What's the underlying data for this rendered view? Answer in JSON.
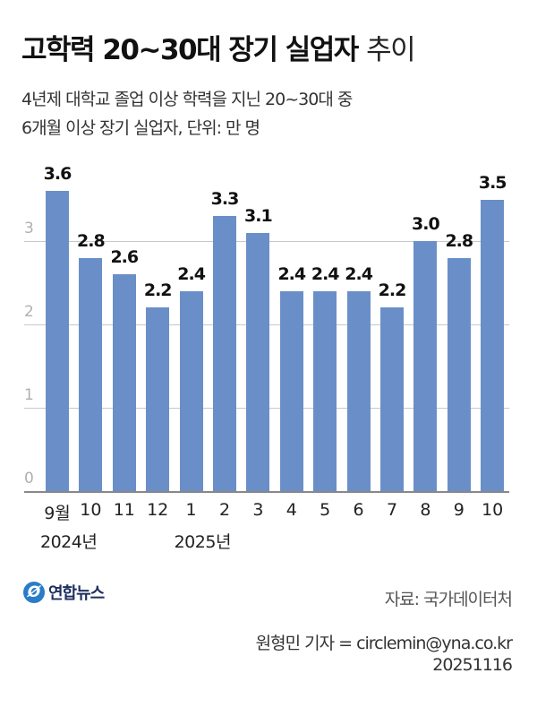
{
  "header": {
    "title_bold": "고학력 20~30대 장기 실업자",
    "title_light": "추이",
    "subtitle_line1": "4년제 대학교 졸업 이상 학력을 지닌 20~30대 중",
    "subtitle_line2": "6개월 이상 장기 실업자, 단위: 만 명"
  },
  "colors": {
    "bar": "#6a8fc8",
    "grid": "#c8c8c8",
    "logo": "#2a7cc7"
  },
  "chart_data": {
    "type": "bar",
    "title": "고학력 20~30대 장기 실업자 추이",
    "subtitle": "4년제 대학교 졸업 이상 학력을 지닌 20~30대 중 6개월 이상 장기 실업자, 단위: 만 명",
    "categories": [
      "9월",
      "10",
      "11",
      "12",
      "1",
      "2",
      "3",
      "4",
      "5",
      "6",
      "7",
      "8",
      "9",
      "10"
    ],
    "year_labels": [
      {
        "label": "2024년",
        "at_index": 0
      },
      {
        "label": "2025년",
        "at_index": 4
      }
    ],
    "values": [
      3.6,
      2.8,
      2.6,
      2.2,
      2.4,
      3.3,
      3.1,
      2.4,
      2.4,
      2.4,
      2.2,
      3.0,
      2.8,
      3.5
    ],
    "value_labels": [
      "3.6",
      "2.8",
      "2.6",
      "2.2",
      "2.4",
      "3.3",
      "3.1",
      "2.4",
      "2.4",
      "2.4",
      "2.2",
      "3.0",
      "2.8",
      "3.5"
    ],
    "yticks": [
      "0",
      "1",
      "2",
      "3"
    ],
    "ylim": [
      0,
      3.9
    ],
    "grid": true,
    "xlabel": "",
    "ylabel": "만 명"
  },
  "footer": {
    "logo_mark": "@",
    "logo_text": "연합뉴스",
    "source": "자료: 국가데이터처",
    "byline": "원형민 기자 = circlemin@yna.co.kr",
    "date": "20251116"
  }
}
